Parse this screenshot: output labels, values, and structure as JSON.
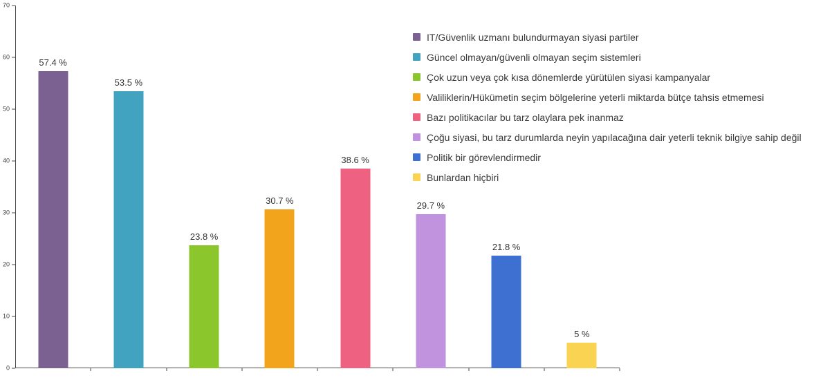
{
  "chart_data": {
    "type": "bar",
    "title": "",
    "xlabel": "",
    "ylabel": "",
    "ylim": [
      0,
      70
    ],
    "y_ticks": [
      0,
      10,
      20,
      30,
      40,
      50,
      60,
      70
    ],
    "grid": false,
    "legend_position": "top-right",
    "categories": [
      "IT/Güvenlik uzmanı bulundurmayan siyasi partiler",
      "Güncel olmayan/güvenli olmayan seçim sistemleri",
      "Çok uzun veya çok kısa dönemlerde yürütülen siyasi kampanyalar",
      "Valiliklerin/Hükümetin seçim bölgelerine yeterli miktarda bütçe tahsis etmemesi",
      "Bazı politikacılar bu tarz olaylara pek inanmaz",
      "Çoğu siyasi, bu tarz durumlarda neyin yapılacağına dair yeterli teknik bilgiye sahip değil",
      "Politik bir görevlendirmedir",
      "Bunlardan hiçbiri"
    ],
    "values": [
      57.4,
      53.5,
      23.8,
      30.7,
      38.6,
      29.7,
      21.8,
      5
    ],
    "value_labels": [
      "57.4 %",
      "53.5 %",
      "23.8 %",
      "30.7 %",
      "38.6 %",
      "29.7 %",
      "21.8 %",
      "5 %"
    ],
    "colors": [
      "#7b6191",
      "#41a3bf",
      "#8cc62d",
      "#f2a41d",
      "#ef6181",
      "#c193de",
      "#3e70d1",
      "#f9d351"
    ],
    "axis_color": "#4a4a4a"
  }
}
